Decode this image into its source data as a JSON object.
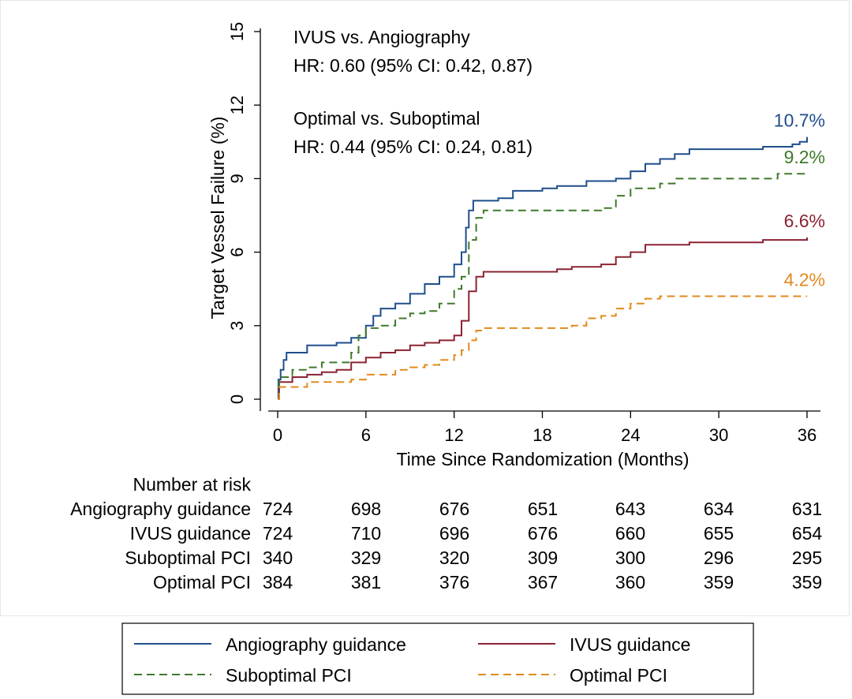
{
  "chart_data": {
    "type": "line",
    "ylabel": "Target Vessel Failure (%)",
    "xlabel": "Time Since Randomization (Months)",
    "ylim": [
      0,
      15
    ],
    "xlim": [
      0,
      36
    ],
    "yticks": [
      0,
      3,
      6,
      9,
      12,
      15
    ],
    "xticks": [
      0,
      6,
      12,
      18,
      24,
      30,
      36
    ],
    "grid": false,
    "legend_position": "bottom",
    "annotations": [
      {
        "line1": "IVUS vs. Angiography",
        "line2": "HR: 0.60 (95% CI: 0.42, 0.87)"
      },
      {
        "line1": "Optimal vs. Suboptimal",
        "line2": "HR: 0.44 (95% CI: 0.24, 0.81)"
      }
    ],
    "series": [
      {
        "name": "Angiography guidance",
        "color": "#1f4e8c",
        "dash": "solid",
        "end_label": "10.7%",
        "points": [
          [
            0,
            0
          ],
          [
            0.05,
            0.8
          ],
          [
            0.2,
            1.2
          ],
          [
            0.4,
            1.6
          ],
          [
            0.6,
            1.9
          ],
          [
            2,
            2.2
          ],
          [
            4,
            2.3
          ],
          [
            5,
            2.5
          ],
          [
            6,
            3.0
          ],
          [
            6.5,
            3.4
          ],
          [
            7,
            3.7
          ],
          [
            8,
            3.9
          ],
          [
            9,
            4.3
          ],
          [
            10,
            4.7
          ],
          [
            11,
            5.0
          ],
          [
            12,
            5.5
          ],
          [
            12.5,
            6.0
          ],
          [
            12.8,
            7.0
          ],
          [
            13,
            7.7
          ],
          [
            13.3,
            8.1
          ],
          [
            15,
            8.2
          ],
          [
            16,
            8.5
          ],
          [
            18,
            8.6
          ],
          [
            19,
            8.7
          ],
          [
            21,
            8.9
          ],
          [
            23,
            9.0
          ],
          [
            24,
            9.3
          ],
          [
            25,
            9.6
          ],
          [
            26,
            9.8
          ],
          [
            27,
            10.0
          ],
          [
            28,
            10.2
          ],
          [
            33,
            10.3
          ],
          [
            35,
            10.4
          ],
          [
            35.5,
            10.5
          ],
          [
            36,
            10.7
          ]
        ]
      },
      {
        "name": "IVUS guidance",
        "color": "#8b2332",
        "dash": "solid",
        "end_label": "6.6%",
        "points": [
          [
            0,
            0
          ],
          [
            0.1,
            0.7
          ],
          [
            1,
            0.9
          ],
          [
            2,
            1.0
          ],
          [
            3,
            1.1
          ],
          [
            4,
            1.2
          ],
          [
            5,
            1.5
          ],
          [
            6,
            1.7
          ],
          [
            7,
            1.9
          ],
          [
            8,
            2.0
          ],
          [
            9,
            2.2
          ],
          [
            10,
            2.3
          ],
          [
            11,
            2.4
          ],
          [
            12,
            2.6
          ],
          [
            12.5,
            3.2
          ],
          [
            13,
            4.4
          ],
          [
            13.5,
            5.0
          ],
          [
            14,
            5.2
          ],
          [
            18,
            5.2
          ],
          [
            19,
            5.3
          ],
          [
            20,
            5.4
          ],
          [
            22,
            5.5
          ],
          [
            23,
            5.8
          ],
          [
            24,
            6.0
          ],
          [
            25,
            6.3
          ],
          [
            28,
            6.4
          ],
          [
            33,
            6.5
          ],
          [
            36,
            6.6
          ]
        ]
      },
      {
        "name": "Suboptimal PCI",
        "color": "#3e7a2a",
        "dash": "dashed",
        "end_label": "9.2%",
        "points": [
          [
            0,
            0
          ],
          [
            0.1,
            0.9
          ],
          [
            1,
            1.2
          ],
          [
            2,
            1.3
          ],
          [
            3,
            1.5
          ],
          [
            4,
            1.5
          ],
          [
            5,
            1.9
          ],
          [
            5.5,
            2.6
          ],
          [
            6,
            2.9
          ],
          [
            7,
            3.0
          ],
          [
            8,
            3.3
          ],
          [
            9,
            3.5
          ],
          [
            10,
            3.6
          ],
          [
            11,
            3.9
          ],
          [
            12,
            4.5
          ],
          [
            12.5,
            5.0
          ],
          [
            13,
            6.5
          ],
          [
            13.5,
            7.4
          ],
          [
            14,
            7.7
          ],
          [
            22,
            7.8
          ],
          [
            23,
            8.3
          ],
          [
            24,
            8.6
          ],
          [
            26,
            8.8
          ],
          [
            27,
            9.0
          ],
          [
            32,
            9.0
          ],
          [
            34,
            9.2
          ],
          [
            36,
            9.2
          ]
        ]
      },
      {
        "name": "Optimal PCI",
        "color": "#e08a1e",
        "dash": "dashed",
        "end_label": "4.2%",
        "points": [
          [
            0,
            0
          ],
          [
            0.1,
            0.5
          ],
          [
            2,
            0.7
          ],
          [
            5,
            0.8
          ],
          [
            6,
            1.0
          ],
          [
            8,
            1.2
          ],
          [
            9,
            1.3
          ],
          [
            10,
            1.4
          ],
          [
            11,
            1.6
          ],
          [
            12,
            1.8
          ],
          [
            12.5,
            2.0
          ],
          [
            13,
            2.4
          ],
          [
            13.5,
            2.8
          ],
          [
            14,
            2.9
          ],
          [
            20,
            3.0
          ],
          [
            21,
            3.3
          ],
          [
            22,
            3.4
          ],
          [
            23,
            3.7
          ],
          [
            24,
            3.9
          ],
          [
            25,
            4.1
          ],
          [
            26,
            4.2
          ],
          [
            36,
            4.2
          ]
        ]
      }
    ]
  },
  "risk_table": {
    "title": "Number at risk",
    "rows": [
      {
        "label": "Angiography guidance",
        "values": [
          724,
          698,
          676,
          651,
          643,
          634,
          631
        ]
      },
      {
        "label": "IVUS guidance",
        "values": [
          724,
          710,
          696,
          676,
          660,
          655,
          654
        ]
      },
      {
        "label": "Suboptimal PCI",
        "values": [
          340,
          329,
          320,
          309,
          300,
          296,
          295
        ]
      },
      {
        "label": "Optimal PCI",
        "values": [
          384,
          381,
          376,
          367,
          360,
          359,
          359
        ]
      }
    ]
  },
  "legend": [
    {
      "label": "Angiography guidance",
      "color": "#1f4e8c",
      "dash": "solid"
    },
    {
      "label": "IVUS guidance",
      "color": "#8b2332",
      "dash": "solid"
    },
    {
      "label": "Suboptimal PCI",
      "color": "#3e7a2a",
      "dash": "dashed"
    },
    {
      "label": "Optimal PCI",
      "color": "#e08a1e",
      "dash": "dashed"
    }
  ]
}
